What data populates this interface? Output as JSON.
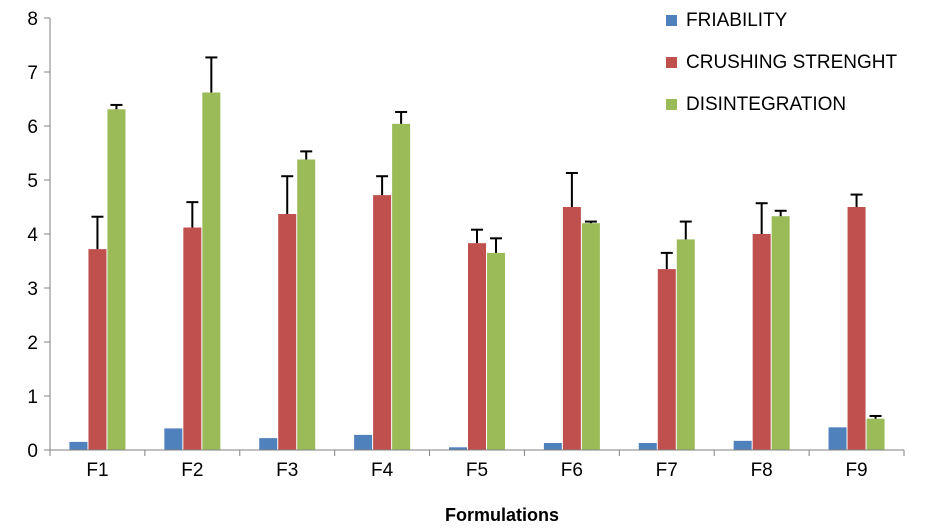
{
  "chart_data": {
    "type": "bar",
    "title": "",
    "xlabel": "Formulations",
    "ylabel": "",
    "ylim": [
      0,
      8
    ],
    "yticks": [
      0,
      1,
      2,
      3,
      4,
      5,
      6,
      7,
      8
    ],
    "grid": false,
    "legend_position": "top-right",
    "categories": [
      "F1",
      "F2",
      "F3",
      "F4",
      "F5",
      "F6",
      "F7",
      "F8",
      "F9"
    ],
    "series": [
      {
        "name": "FRIABILITY",
        "color": "#4f81bd",
        "values": [
          0.15,
          0.4,
          0.22,
          0.28,
          0.05,
          0.13,
          0.13,
          0.17,
          0.42
        ],
        "errors": [
          0,
          0,
          0,
          0,
          0,
          0,
          0,
          0,
          0
        ]
      },
      {
        "name": "CRUSHING STRENGHT",
        "color": "#c0504d",
        "values": [
          3.72,
          4.12,
          4.37,
          4.72,
          3.83,
          4.5,
          3.35,
          4.0,
          4.5
        ],
        "errors": [
          0.6,
          0.47,
          0.7,
          0.35,
          0.25,
          0.63,
          0.3,
          0.57,
          0.23
        ]
      },
      {
        "name": "DISINTEGRATION",
        "color": "#9bbb59",
        "values": [
          6.31,
          6.62,
          5.38,
          6.04,
          3.65,
          4.2,
          3.9,
          4.33,
          0.58
        ],
        "errors": [
          0.08,
          0.65,
          0.15,
          0.22,
          0.27,
          0.03,
          0.33,
          0.1,
          0.05
        ]
      }
    ]
  }
}
